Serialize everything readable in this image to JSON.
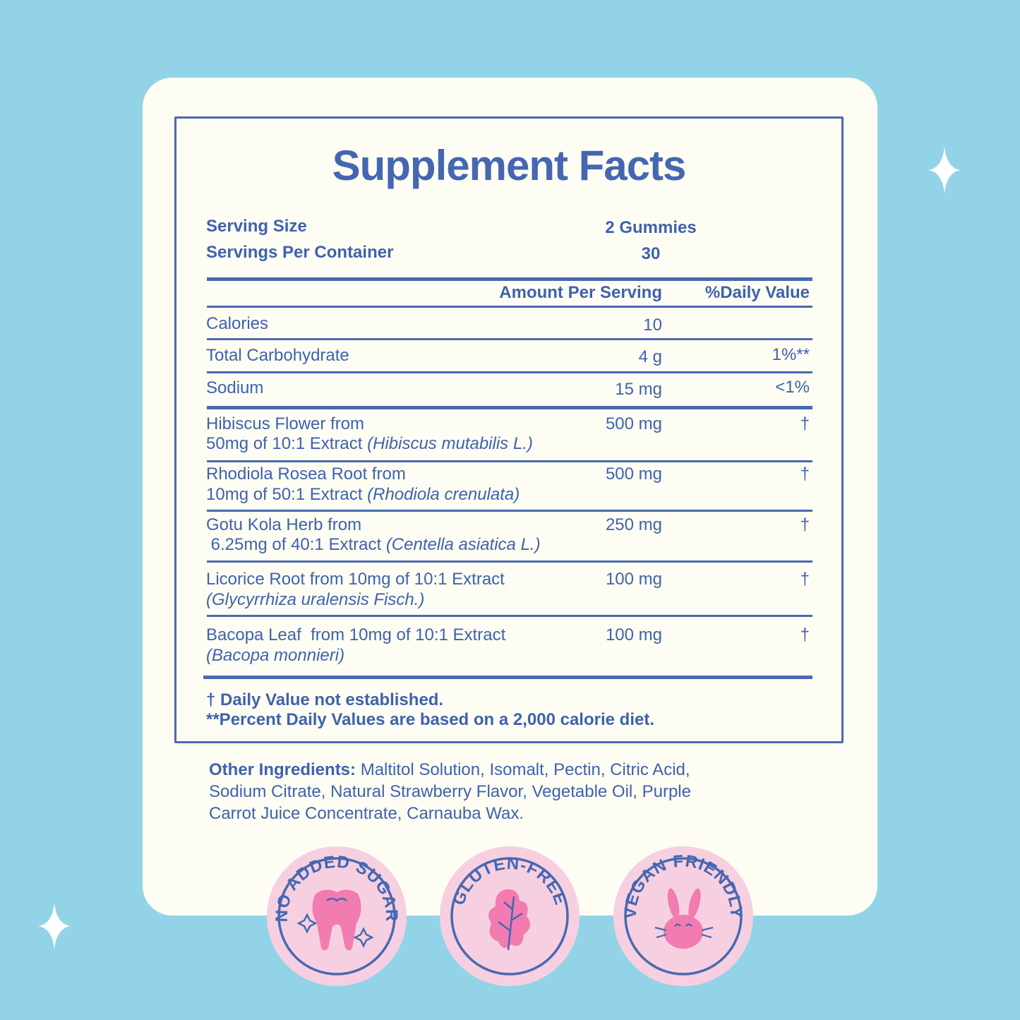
{
  "title": "Supplement Facts",
  "serving": {
    "size_label": "Serving Size",
    "size_value": "2 Gummies",
    "per_container_label": "Servings Per Container",
    "per_container_value": "30"
  },
  "header": {
    "amount": "Amount Per Serving",
    "dv": "%Daily Value"
  },
  "nutrients": [
    {
      "name": "Calories",
      "amount": "10",
      "dv": ""
    },
    {
      "name": "Total Carbohydrate",
      "amount": "4 g",
      "dv": "1%**"
    },
    {
      "name": "Sodium",
      "amount": "15 mg",
      "dv": "<1%"
    }
  ],
  "botanicals": [
    {
      "line1": "Hibiscus Flower from",
      "line2": "50mg of 10:1 Extract ",
      "latin": "(Hibiscus mutabilis L.)",
      "amount": "500 mg",
      "dv": "†"
    },
    {
      "line1": "Rhodiola Rosea Root from",
      "line2": "10mg of 50:1 Extract ",
      "latin": "(Rhodiola crenulata)",
      "amount": "500 mg",
      "dv": "†"
    },
    {
      "line1": "Gotu Kola Herb from",
      "line2": " 6.25mg of 40:1 Extract ",
      "latin": "(Centella asiatica L.)",
      "amount": "250 mg",
      "dv": "†"
    },
    {
      "line1": "Licorice Root from 10mg of 10:1 Extract",
      "line2": "",
      "latin": "(Glycyrrhiza uralensis Fisch.)",
      "amount": "100 mg",
      "dv": "†"
    },
    {
      "line1": "Bacopa Leaf  from 10mg of 10:1 Extract",
      "line2": "",
      "latin": "(Bacopa monnieri)",
      "amount": "100 mg",
      "dv": "†"
    }
  ],
  "footnotes": [
    "† Daily Value not established.",
    "**Percent Daily Values are based on a 2,000 calorie diet."
  ],
  "other_ingredients": {
    "label": "Other Ingredients:",
    "lines": [
      " Maltitol Solution, Isomalt, Pectin, Citric Acid,",
      "Sodium Citrate, Natural Strawberry Flavor, Vegetable Oil, Purple",
      "Carrot Juice Concentrate, Carnauba Wax."
    ]
  },
  "badges": [
    {
      "text": "NO ADDED SUGAR",
      "icon": "tooth-icon"
    },
    {
      "text": "GLUTEN-FREE",
      "icon": "leaf-icon"
    },
    {
      "text": "VEGAN FRIENDLY",
      "icon": "bunny-icon"
    }
  ],
  "colors": {
    "background": "#93d3e7",
    "card": "#fdfdf3",
    "text": "#3f62ad",
    "badge": "#f6d0e1",
    "badge_icon": "#f27bb0"
  }
}
